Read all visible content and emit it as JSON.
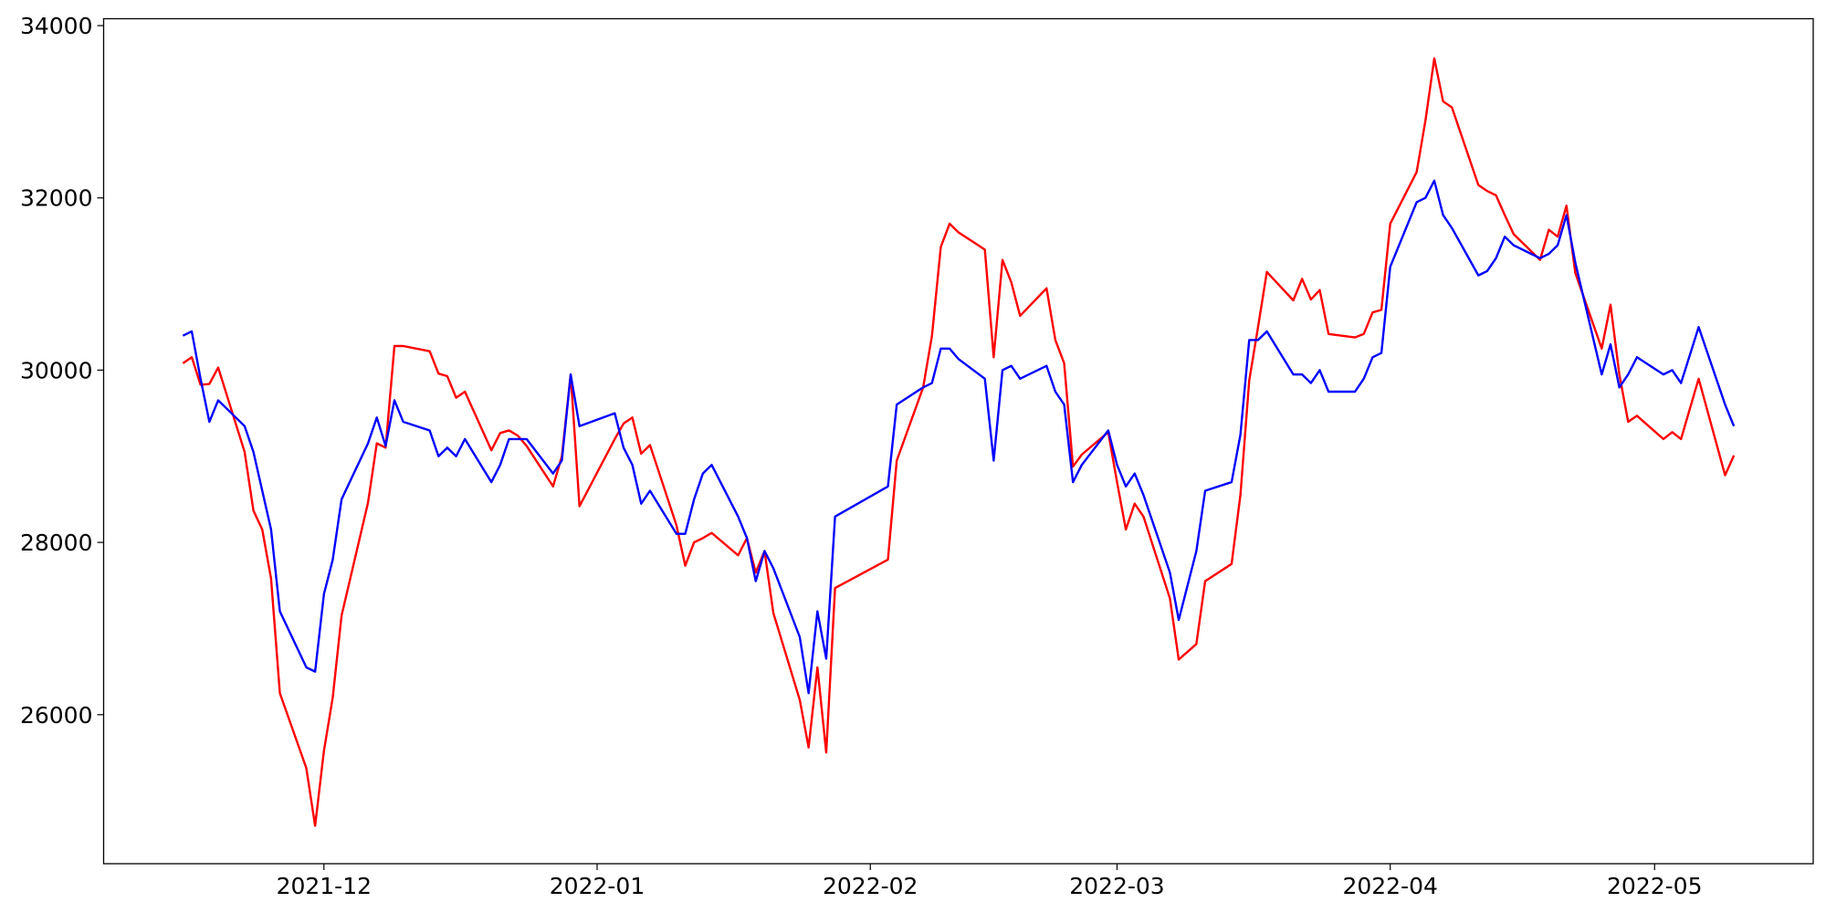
{
  "chart_data": {
    "type": "line",
    "x": [
      "2021-11-15",
      "2021-11-16",
      "2021-11-17",
      "2021-11-18",
      "2021-11-19",
      "2021-11-22",
      "2021-11-23",
      "2021-11-24",
      "2021-11-25",
      "2021-11-26",
      "2021-11-29",
      "2021-11-30",
      "2021-12-01",
      "2021-12-02",
      "2021-12-03",
      "2021-12-06",
      "2021-12-07",
      "2021-12-08",
      "2021-12-09",
      "2021-12-10",
      "2021-12-13",
      "2021-12-14",
      "2021-12-15",
      "2021-12-16",
      "2021-12-17",
      "2021-12-20",
      "2021-12-21",
      "2021-12-22",
      "2021-12-23",
      "2021-12-24",
      "2021-12-27",
      "2021-12-28",
      "2021-12-29",
      "2021-12-30",
      "2022-01-03",
      "2022-01-04",
      "2022-01-05",
      "2022-01-06",
      "2022-01-07",
      "2022-01-10",
      "2022-01-11",
      "2022-01-12",
      "2022-01-13",
      "2022-01-14",
      "2022-01-17",
      "2022-01-18",
      "2022-01-19",
      "2022-01-20",
      "2022-01-21",
      "2022-01-24",
      "2022-01-25",
      "2022-01-26",
      "2022-01-27",
      "2022-01-28",
      "2022-02-03",
      "2022-02-04",
      "2022-02-07",
      "2022-02-08",
      "2022-02-09",
      "2022-02-10",
      "2022-02-11",
      "2022-02-14",
      "2022-02-15",
      "2022-02-16",
      "2022-02-17",
      "2022-02-18",
      "2022-02-21",
      "2022-02-22",
      "2022-02-23",
      "2022-02-24",
      "2022-02-25",
      "2022-02-28",
      "2022-03-01",
      "2022-03-02",
      "2022-03-03",
      "2022-03-04",
      "2022-03-07",
      "2022-03-08",
      "2022-03-09",
      "2022-03-10",
      "2022-03-11",
      "2022-03-14",
      "2022-03-15",
      "2022-03-16",
      "2022-03-17",
      "2022-03-18",
      "2022-03-21",
      "2022-03-22",
      "2022-03-23",
      "2022-03-24",
      "2022-03-25",
      "2022-03-28",
      "2022-03-29",
      "2022-03-30",
      "2022-03-31",
      "2022-04-01",
      "2022-04-04",
      "2022-04-05",
      "2022-04-06",
      "2022-04-07",
      "2022-04-08",
      "2022-04-11",
      "2022-04-12",
      "2022-04-13",
      "2022-04-14",
      "2022-04-15",
      "2022-04-18",
      "2022-04-19",
      "2022-04-20",
      "2022-04-21",
      "2022-04-22",
      "2022-04-25",
      "2022-04-26",
      "2022-04-27",
      "2022-04-28",
      "2022-04-29",
      "2022-05-02",
      "2022-05-03",
      "2022-05-04",
      "2022-05-06",
      "2022-05-09",
      "2022-05-10"
    ],
    "series": [
      {
        "color": "red",
        "values": [
          30080,
          30150,
          29830,
          29840,
          30030,
          29050,
          28370,
          28150,
          27580,
          26250,
          25380,
          24710,
          25580,
          26200,
          27150,
          28460,
          29150,
          29100,
          30280,
          30280,
          30220,
          29960,
          29930,
          29680,
          29750,
          29070,
          29270,
          29300,
          29240,
          29120,
          28650,
          29000,
          29950,
          28420,
          29200,
          29380,
          29450,
          29030,
          29130,
          28200,
          27730,
          28000,
          28050,
          28110,
          27850,
          28050,
          27650,
          27900,
          27180,
          26170,
          25620,
          26550,
          25560,
          27470,
          27800,
          28950,
          29800,
          30400,
          31430,
          31700,
          31600,
          31400,
          30150,
          31280,
          31020,
          30630,
          30950,
          30350,
          30080,
          28880,
          29020,
          29280,
          28700,
          28150,
          28450,
          28300,
          27350,
          26640,
          26730,
          26820,
          27550,
          27750,
          28550,
          29880,
          30500,
          31140,
          30810,
          31060,
          30820,
          30930,
          30420,
          30380,
          30420,
          30670,
          30700,
          31700,
          32300,
          32900,
          33620,
          33120,
          33050,
          32150,
          32080,
          32030,
          31800,
          31580,
          31280,
          31630,
          31550,
          31910,
          31130,
          30250,
          30760,
          29950,
          29400,
          29470,
          29200,
          29280,
          29200,
          29900,
          28780,
          29010
        ]
      },
      {
        "color": "blue",
        "values": [
          30400,
          30450,
          29900,
          29400,
          29650,
          29350,
          29050,
          28600,
          28150,
          27200,
          26550,
          26500,
          27400,
          27800,
          28500,
          29150,
          29450,
          29120,
          29650,
          29400,
          29300,
          29000,
          29100,
          29000,
          29200,
          28700,
          28900,
          29200,
          29200,
          29200,
          28800,
          28950,
          29950,
          29350,
          29500,
          29100,
          28900,
          28450,
          28600,
          28100,
          28100,
          28500,
          28800,
          28900,
          28300,
          28050,
          27550,
          27900,
          27700,
          26900,
          26250,
          27200,
          26650,
          28300,
          28650,
          29600,
          29800,
          29850,
          30250,
          30250,
          30130,
          29900,
          28950,
          30000,
          30050,
          29900,
          30050,
          29750,
          29600,
          28700,
          28900,
          29300,
          28900,
          28650,
          28800,
          28550,
          27650,
          27100,
          27500,
          27900,
          28600,
          28700,
          29250,
          30350,
          30350,
          30450,
          29950,
          29950,
          29850,
          30000,
          29750,
          29750,
          29900,
          30150,
          30200,
          31200,
          31950,
          32000,
          32200,
          31800,
          31650,
          31100,
          31150,
          31300,
          31550,
          31450,
          31300,
          31350,
          31450,
          31800,
          31250,
          29950,
          30300,
          29800,
          29950,
          30150,
          29950,
          30000,
          29850,
          30500,
          29600,
          29350
        ]
      }
    ],
    "xlim": [
      "2021-11-06",
      "2022-05-19"
    ],
    "ylim": [
      24270,
      34080
    ],
    "xticks": [
      {
        "value": "2021-12-01",
        "label": "2021-12"
      },
      {
        "value": "2022-01-01",
        "label": "2022-01"
      },
      {
        "value": "2022-02-01",
        "label": "2022-02"
      },
      {
        "value": "2022-03-01",
        "label": "2022-03"
      },
      {
        "value": "2022-04-01",
        "label": "2022-04"
      },
      {
        "value": "2022-05-01",
        "label": "2022-05"
      }
    ],
    "yticks": [
      26000,
      28000,
      30000,
      32000,
      34000
    ],
    "grid": false
  }
}
